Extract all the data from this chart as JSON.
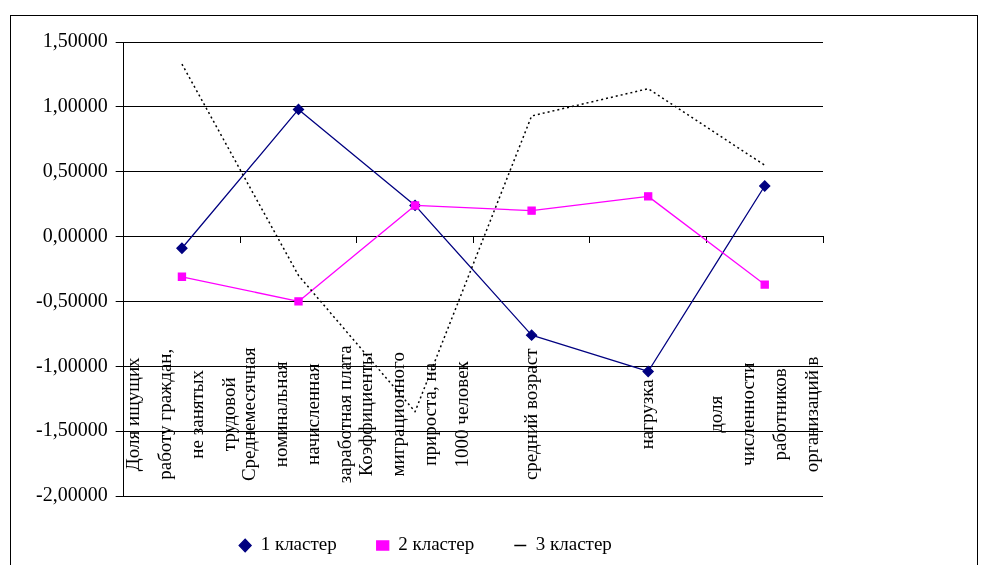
{
  "chart_data": {
    "type": "line",
    "categories": [
      "Доля ищущих\nработу граждан,\nне занятых\nтрудовой",
      "Среднемесячная\nноминальная\nначисленная\nзаработная плата",
      "Коэффициенты\nмиграционного\nприроста, на\n1000 человек",
      "средний возраст",
      "нагрузка",
      "доля\nчисленности\nработников\nорганизаций в"
    ],
    "series": [
      {
        "name": "1 кластер",
        "color": "#000080",
        "marker": "diamond",
        "line_style": "solid",
        "values": [
          -0.09,
          0.98,
          0.24,
          -0.76,
          -1.04,
          0.39
        ]
      },
      {
        "name": "2 кластер",
        "color": "#ff00ff",
        "marker": "square",
        "line_style": "solid",
        "values": [
          -0.31,
          -0.5,
          0.24,
          0.2,
          0.31,
          -0.37
        ]
      },
      {
        "name": "3 кластер",
        "color": "#000000",
        "marker": "none",
        "line_style": "dotted",
        "values": [
          1.33,
          -0.3,
          -1.35,
          0.93,
          1.14,
          0.55
        ]
      }
    ],
    "ylim": [
      -2,
      1.5
    ],
    "yticks": [
      {
        "value": -2,
        "label": "-2,00000"
      },
      {
        "value": -1.5,
        "label": "-1,50000"
      },
      {
        "value": -1,
        "label": "-1,00000"
      },
      {
        "value": -0.5,
        "label": "-0,50000"
      },
      {
        "value": 0,
        "label": "0,00000"
      },
      {
        "value": 0.5,
        "label": "0,50000"
      },
      {
        "value": 1,
        "label": "1,00000"
      },
      {
        "value": 1.5,
        "label": "1,50000"
      }
    ],
    "grid": "y",
    "legend": "bottom"
  }
}
